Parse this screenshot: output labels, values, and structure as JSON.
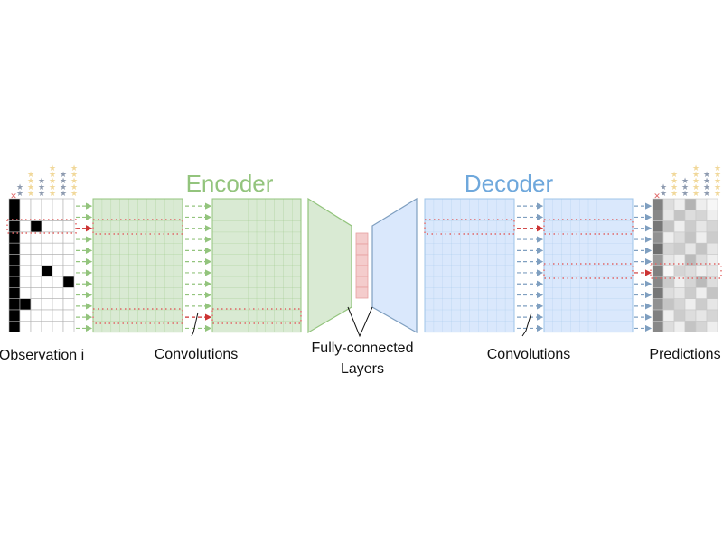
{
  "titles": {
    "encoder": "Encoder",
    "decoder": "Decoder"
  },
  "labels": {
    "observation": "Observation i",
    "convolutions_left": "Convolutions",
    "fc_line1": "Fully-connected",
    "fc_line2": "Layers",
    "convolutions_right": "Convolutions",
    "predictions": "Predictions"
  },
  "colors": {
    "encoder_title": "#93c47d",
    "decoder_title": "#6fa8dc",
    "encoder_fill": "#d9ead3",
    "encoder_stroke": "#93c47d",
    "decoder_fill": "#dae8fc",
    "decoder_stroke": "#9fc5e8",
    "latent_fill": "#f4cccc",
    "latent_stroke": "#e6a0a0",
    "highlight_dots": "#e06666",
    "star": "#8e9bb0",
    "star_faded": "#f1d89a",
    "cross": "#e06666"
  },
  "observation_grid": {
    "rows": 12,
    "cols": 6,
    "filled_cells": [
      [
        0,
        0
      ],
      [
        1,
        0
      ],
      [
        2,
        0
      ],
      [
        2,
        2
      ],
      [
        3,
        0
      ],
      [
        4,
        0
      ],
      [
        5,
        0
      ],
      [
        6,
        0
      ],
      [
        6,
        3
      ],
      [
        7,
        0
      ],
      [
        7,
        5
      ],
      [
        8,
        0
      ],
      [
        9,
        0
      ],
      [
        9,
        1
      ],
      [
        10,
        0
      ],
      [
        11,
        0
      ]
    ]
  },
  "prediction_grid": {
    "rows": 12,
    "cols": 6,
    "shades": [
      [
        0.75,
        0.2,
        0.1,
        0.45,
        0.1,
        0.05
      ],
      [
        0.7,
        0.15,
        0.35,
        0.2,
        0.25,
        0.1
      ],
      [
        0.8,
        0.35,
        0.1,
        0.3,
        0.15,
        0.25
      ],
      [
        0.65,
        0.1,
        0.2,
        0.35,
        0.1,
        0.3
      ],
      [
        0.85,
        0.25,
        0.3,
        0.15,
        0.35,
        0.15
      ],
      [
        0.6,
        0.15,
        0.1,
        0.4,
        0.2,
        0.1
      ],
      [
        0.75,
        0.05,
        0.25,
        0.2,
        0.1,
        0.15
      ],
      [
        0.7,
        0.3,
        0.1,
        0.25,
        0.4,
        0.2
      ],
      [
        0.8,
        0.2,
        0.15,
        0.3,
        0.1,
        0.35
      ],
      [
        0.65,
        0.35,
        0.25,
        0.1,
        0.3,
        0.15
      ],
      [
        0.75,
        0.1,
        0.3,
        0.2,
        0.15,
        0.25
      ],
      [
        0.7,
        0.2,
        0.1,
        0.35,
        0.25,
        0.1
      ]
    ]
  },
  "star_columns": {
    "observation": [
      2,
      4,
      3,
      5,
      4,
      5
    ],
    "predictions": [
      2,
      4,
      3,
      5,
      4,
      5
    ]
  }
}
